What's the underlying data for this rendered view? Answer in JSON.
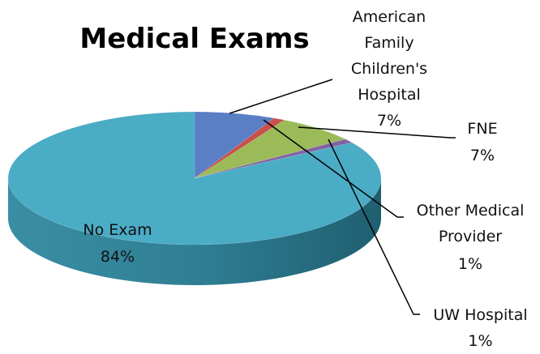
{
  "chart_data": {
    "type": "pie",
    "title": "Medical Exams",
    "categories": [
      "American Family Children's Hospital",
      "Other Medical Provider",
      "FNE",
      "UW Hospital",
      "No Exam"
    ],
    "values": [
      7,
      1,
      7,
      1,
      84
    ],
    "value_labels": [
      "7%",
      "1%",
      "7%",
      "1%",
      "84%"
    ],
    "colors": [
      "#5b7fc4",
      "#c9504d",
      "#9bbb59",
      "#8064a2",
      "#4bacc6"
    ]
  }
}
